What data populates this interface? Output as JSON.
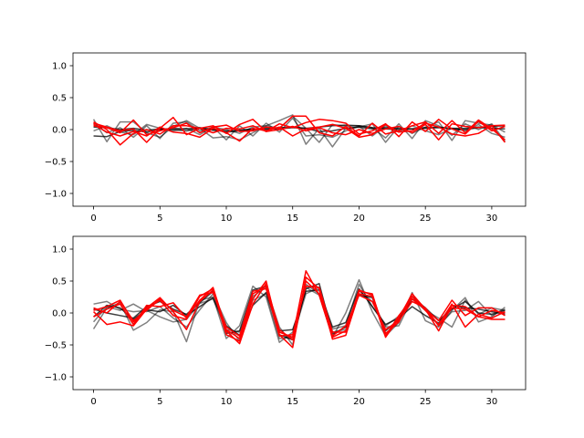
{
  "chart_data": [
    {
      "type": "line",
      "title": "",
      "xlabel": "",
      "ylabel": "",
      "xlim": [
        -1.55,
        32.55
      ],
      "ylim": [
        -1.2,
        1.2
      ],
      "xticks": [
        0,
        5,
        10,
        15,
        20,
        25,
        30
      ],
      "yticks": [
        -1.0,
        -0.5,
        0.0,
        0.5,
        1.0
      ],
      "xtick_labels": [
        "0",
        "5",
        "10",
        "15",
        "20",
        "25",
        "30"
      ],
      "ytick_labels": [
        "−1.0",
        "−0.5",
        "0.0",
        "0.5",
        "1.0"
      ],
      "grid": false,
      "x": [
        0,
        1,
        2,
        3,
        4,
        5,
        6,
        7,
        8,
        9,
        10,
        11,
        12,
        13,
        14,
        15,
        16,
        17,
        18,
        19,
        20,
        21,
        22,
        23,
        24,
        25,
        26,
        27,
        28,
        29,
        30,
        31
      ],
      "series": [
        {
          "color": "#000000",
          "opacity": 0.5,
          "values": [
            0.16,
            -0.19,
            0.12,
            0.12,
            -0.05,
            -0.12,
            0.05,
            0.14,
            0.02,
            -0.13,
            -0.11,
            -0.16,
            -0.05,
            0.06,
            0.14,
            0.23,
            -0.23,
            0.02,
            -0.27,
            0.02,
            0.04,
            0.09,
            -0.2,
            0.05,
            -0.06,
            0.04,
            0.12,
            -0.17,
            0.14,
            0.1,
            0.07,
            -0.04
          ]
        },
        {
          "color": "#000000",
          "opacity": 0.5,
          "values": [
            0.1,
            -0.05,
            0.03,
            -0.12,
            0.06,
            -0.14,
            0.1,
            0.12,
            -0.02,
            0.04,
            -0.16,
            0.06,
            -0.1,
            0.1,
            -0.04,
            0.18,
            -0.1,
            -0.08,
            -0.12,
            -0.02,
            0.05,
            -0.1,
            0.06,
            -0.04,
            0.06,
            -0.02,
            -0.08,
            0.02,
            -0.02,
            0.08,
            -0.06,
            -0.12
          ]
        },
        {
          "color": "#000000",
          "opacity": 0.5,
          "values": [
            -0.02,
            0.06,
            -0.04,
            -0.08,
            0.08,
            0.02,
            -0.02,
            0.02,
            -0.08,
            0.04,
            0.0,
            -0.06,
            0.04,
            0.06,
            0.02,
            0.21,
            0.02,
            -0.2,
            0.08,
            0.05,
            0.06,
            0.03,
            -0.13,
            0.09,
            -0.14,
            0.14,
            0.06,
            -0.09,
            0.09,
            0.0,
            0.09,
            -0.18
          ]
        },
        {
          "color": "#000000",
          "opacity": 0.75,
          "values": [
            -0.1,
            -0.11,
            -0.03,
            -0.01,
            -0.04,
            0.0,
            0.02,
            0.01,
            0.03,
            0.0,
            -0.04,
            -0.02,
            0.0,
            0.02,
            0.01,
            0.03,
            0.02,
            0.04,
            0.06,
            0.07,
            0.06,
            0.03,
            0.01,
            0.0,
            0.01,
            0.03,
            0.04,
            0.02,
            0.02,
            0.04,
            0.02,
            0.01
          ]
        },
        {
          "color": "#000000",
          "opacity": 0.75,
          "values": [
            0.04,
            0.03,
            0.0,
            0.02,
            -0.01,
            0.01,
            0.0,
            -0.02,
            0.02,
            -0.01,
            -0.02,
            -0.01,
            0.01,
            0.0,
            0.03,
            0.04,
            0.02,
            -0.03,
            -0.02,
            0.02,
            0.04,
            0.01,
            0.03,
            0.02,
            0.01,
            0.02,
            0.03,
            0.01,
            0.0,
            0.03,
            0.05,
            0.06
          ]
        },
        {
          "color": "#ff0000",
          "opacity": 1.0,
          "values": [
            0.1,
            0.04,
            -0.02,
            0.01,
            -0.2,
            0.02,
            0.19,
            -0.08,
            0.02,
            0.06,
            -0.06,
            0.08,
            0.16,
            -0.03,
            0.09,
            0.03,
            0.11,
            0.16,
            0.14,
            0.1,
            -0.07,
            -0.02,
            0.09,
            -0.11,
            0.12,
            -0.03,
            0.16,
            0.01,
            -0.07,
            0.13,
            -0.02,
            0.05
          ]
        },
        {
          "color": "#ff0000",
          "opacity": 1.0,
          "values": [
            0.08,
            -0.04,
            -0.1,
            -0.03,
            -0.1,
            0.04,
            -0.04,
            -0.06,
            -0.12,
            0.02,
            -0.05,
            -0.18,
            0.02,
            -0.02,
            0.04,
            -0.1,
            0.01,
            0.04,
            0.08,
            0.02,
            -0.12,
            -0.08,
            0.08,
            -0.04,
            -0.02,
            0.1,
            0.04,
            -0.07,
            -0.1,
            -0.06,
            0.06,
            -0.2
          ]
        },
        {
          "color": "#ff0000",
          "opacity": 1.0,
          "values": [
            0.06,
            0.03,
            -0.05,
            0.15,
            -0.08,
            -0.02,
            0.03,
            0.1,
            -0.05,
            0.04,
            0.07,
            -0.03,
            -0.02,
            0.04,
            0.02,
            0.21,
            0.21,
            -0.05,
            -0.1,
            0.05,
            -0.1,
            0.1,
            -0.07,
            -0.02,
            0.06,
            0.12,
            -0.06,
            0.14,
            -0.05,
            0.15,
            0.01,
            -0.16
          ]
        },
        {
          "color": "#ff0000",
          "opacity": 1.0,
          "values": [
            0.12,
            0.0,
            -0.24,
            -0.06,
            0.0,
            -0.07,
            0.06,
            0.06,
            0.02,
            -0.05,
            0.02,
            0.01,
            0.06,
            -0.03,
            0.0,
            0.05,
            -0.02,
            0.03,
            -0.05,
            -0.08,
            0.0,
            -0.06,
            0.01,
            0.05,
            -0.05,
            0.08,
            -0.16,
            0.09,
            0.05,
            0.03,
            0.06,
            0.07
          ]
        }
      ]
    },
    {
      "type": "line",
      "title": "",
      "xlabel": "",
      "ylabel": "",
      "xlim": [
        -1.55,
        32.55
      ],
      "ylim": [
        -1.2,
        1.2
      ],
      "xticks": [
        0,
        5,
        10,
        15,
        20,
        25,
        30
      ],
      "yticks": [
        -1.0,
        -0.5,
        0.0,
        0.5,
        1.0
      ],
      "xtick_labels": [
        "0",
        "5",
        "10",
        "15",
        "20",
        "25",
        "30"
      ],
      "ytick_labels": [
        "−1.0",
        "−0.5",
        "0.0",
        "0.5",
        "1.0"
      ],
      "grid": false,
      "x": [
        0,
        1,
        2,
        3,
        4,
        5,
        6,
        7,
        8,
        9,
        10,
        11,
        12,
        13,
        14,
        15,
        16,
        17,
        18,
        19,
        20,
        21,
        22,
        23,
        24,
        25,
        26,
        27,
        28,
        29,
        30,
        31
      ],
      "series": [
        {
          "color": "#000000",
          "opacity": 0.5,
          "values": [
            -0.25,
            0.08,
            0.16,
            -0.27,
            -0.15,
            0.05,
            0.02,
            -0.45,
            0.2,
            0.25,
            -0.4,
            -0.2,
            0.42,
            0.25,
            -0.46,
            -0.3,
            0.4,
            0.28,
            -0.38,
            0.0,
            0.52,
            0.02,
            -0.36,
            -0.15,
            0.32,
            -0.12,
            -0.22,
            0.04,
            0.24,
            -0.14,
            -0.06,
            0.09
          ]
        },
        {
          "color": "#000000",
          "opacity": 0.5,
          "values": [
            0.14,
            0.18,
            0.06,
            0.02,
            0.04,
            -0.06,
            -0.14,
            -0.1,
            0.15,
            0.22,
            -0.26,
            -0.3,
            0.2,
            0.3,
            -0.4,
            -0.38,
            0.3,
            0.4,
            -0.3,
            -0.26,
            0.35,
            0.18,
            -0.22,
            -0.2,
            0.22,
            0.04,
            -0.08,
            -0.22,
            0.2,
            -0.02,
            0.08,
            0.04
          ]
        },
        {
          "color": "#000000",
          "opacity": 0.5,
          "values": [
            -0.14,
            0.1,
            0.04,
            0.14,
            0.02,
            0.1,
            -0.08,
            -0.22,
            0.05,
            0.3,
            -0.15,
            -0.44,
            0.26,
            0.4,
            -0.22,
            -0.5,
            0.45,
            0.3,
            -0.25,
            -0.2,
            0.45,
            0.1,
            -0.2,
            -0.05,
            0.26,
            0.08,
            -0.2,
            0.02,
            0.04,
            0.18,
            -0.04,
            0.06
          ]
        },
        {
          "color": "#000000",
          "opacity": 0.75,
          "values": [
            0.06,
            0.0,
            -0.04,
            -0.08,
            0.1,
            0.18,
            0.06,
            -0.02,
            0.16,
            0.34,
            -0.32,
            -0.28,
            0.36,
            0.42,
            -0.34,
            -0.42,
            0.38,
            0.46,
            -0.33,
            -0.22,
            0.28,
            0.24,
            -0.28,
            -0.1,
            0.22,
            0.08,
            -0.12,
            0.06,
            0.18,
            0.0,
            -0.02,
            0.04
          ]
        },
        {
          "color": "#000000",
          "opacity": 0.75,
          "values": [
            -0.06,
            0.12,
            0.08,
            -0.1,
            0.05,
            0.02,
            0.12,
            -0.04,
            0.1,
            0.24,
            -0.2,
            -0.35,
            0.12,
            0.32,
            -0.28,
            -0.26,
            0.34,
            0.36,
            -0.22,
            -0.15,
            0.38,
            0.1,
            -0.18,
            -0.08,
            0.1,
            -0.04,
            -0.16,
            0.12,
            0.08,
            0.06,
            0.02,
            -0.02
          ]
        },
        {
          "color": "#ff0000",
          "opacity": 1.0,
          "values": [
            0.04,
            0.1,
            0.2,
            -0.14,
            0.08,
            0.24,
            0.02,
            -0.26,
            0.18,
            0.36,
            -0.34,
            -0.44,
            0.22,
            0.5,
            -0.34,
            -0.54,
            0.56,
            0.38,
            -0.41,
            -0.35,
            0.3,
            0.26,
            -0.38,
            -0.08,
            0.3,
            0.06,
            -0.28,
            0.12,
            0.1,
            -0.06,
            -0.1,
            -0.1
          ]
        },
        {
          "color": "#ff0000",
          "opacity": 1.0,
          "values": [
            0.02,
            -0.18,
            -0.14,
            -0.2,
            0.06,
            0.2,
            -0.04,
            -0.1,
            0.26,
            0.38,
            -0.28,
            -0.48,
            0.14,
            0.46,
            -0.3,
            -0.38,
            0.66,
            0.28,
            -0.38,
            -0.28,
            0.34,
            0.3,
            -0.36,
            -0.04,
            0.22,
            0.06,
            -0.12,
            0.2,
            -0.04,
            0.08,
            0.08,
            -0.04
          ]
        },
        {
          "color": "#ff0000",
          "opacity": 1.0,
          "values": [
            -0.06,
            0.06,
            0.14,
            -0.18,
            0.12,
            0.1,
            0.16,
            -0.08,
            0.2,
            0.4,
            -0.26,
            -0.4,
            0.3,
            0.42,
            -0.26,
            -0.42,
            0.5,
            0.3,
            -0.36,
            -0.2,
            0.28,
            0.18,
            -0.26,
            -0.12,
            0.18,
            0.08,
            -0.2,
            0.08,
            0.06,
            -0.06,
            0.04,
            0.0
          ]
        },
        {
          "color": "#ff0000",
          "opacity": 1.0,
          "values": [
            0.08,
            0.0,
            0.18,
            -0.12,
            0.04,
            0.22,
            0.04,
            -0.06,
            0.28,
            0.32,
            -0.22,
            -0.36,
            0.34,
            0.38,
            -0.36,
            -0.34,
            0.42,
            0.4,
            -0.3,
            -0.3,
            0.36,
            0.28,
            -0.32,
            -0.14,
            0.26,
            0.04,
            -0.18,
            0.14,
            -0.22,
            -0.02,
            -0.08,
            0.02
          ]
        }
      ]
    }
  ]
}
